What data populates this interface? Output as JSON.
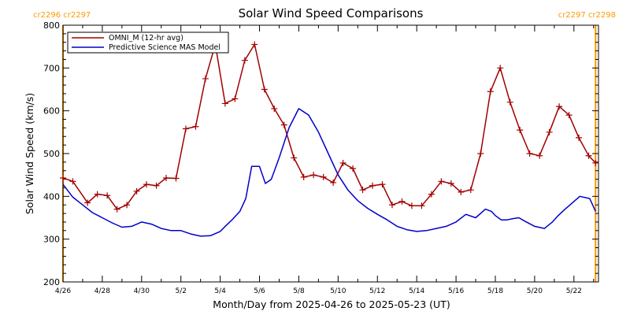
{
  "chart_data": {
    "type": "line",
    "title": "Solar Wind Speed Comparisons",
    "xlabel": "Month/Day from 2025-04-26 to 2025-05-23 (UT)",
    "ylabel": "Solar Wind Speed (km/s)",
    "ylim": [
      200,
      800
    ],
    "xlim": [
      0,
      27.25
    ],
    "y_ticks": [
      200,
      300,
      400,
      500,
      600,
      700,
      800
    ],
    "x_tick_days": [
      0,
      2,
      4,
      6,
      8,
      10,
      12,
      14,
      16,
      18,
      20,
      22,
      24,
      26
    ],
    "x_tick_labels": [
      "4/26",
      "4/28",
      "4/30",
      "5/2",
      "5/4",
      "5/6",
      "5/8",
      "5/10",
      "5/12",
      "5/14",
      "5/16",
      "5/18",
      "5/20",
      "5/22"
    ],
    "rotation_markers": [
      {
        "day": 0.0,
        "label": "cr2296 cr2297"
      },
      {
        "day": 27.1,
        "label": "cr2297 cr2298"
      }
    ],
    "colors": {
      "omni": "#a00000",
      "model": "#0000cc",
      "rotation": "#ff9900"
    },
    "legend": [
      "OMNI_M (12-hr avg)",
      "Predictive Science MAS Model"
    ],
    "legend_position": "top-left",
    "series": [
      {
        "name": "OMNI_M (12-hr avg)",
        "marker": "plus",
        "x": [
          0.0,
          0.5,
          1.25,
          1.75,
          2.25,
          2.75,
          3.25,
          3.75,
          4.25,
          4.75,
          5.25,
          5.75,
          6.25,
          6.75,
          7.25,
          7.75,
          8.25,
          8.75,
          9.25,
          9.75,
          10.25,
          10.75,
          11.25,
          11.75,
          12.25,
          12.75,
          13.25,
          13.75,
          14.25,
          14.75,
          15.25,
          15.75,
          16.25,
          16.75,
          17.25,
          17.75,
          18.25,
          18.75,
          19.25,
          19.75,
          20.25,
          20.75,
          21.25,
          21.75,
          22.25,
          22.75,
          23.25,
          23.75,
          24.25,
          24.75,
          25.25,
          25.75,
          26.25,
          26.75,
          27.1
        ],
        "values": [
          443,
          435,
          385,
          405,
          402,
          370,
          380,
          412,
          428,
          425,
          443,
          442,
          558,
          563,
          675,
          755,
          617,
          628,
          718,
          755,
          650,
          605,
          567,
          490,
          445,
          450,
          445,
          432,
          478,
          465,
          415,
          425,
          428,
          380,
          388,
          378,
          378,
          405,
          435,
          430,
          410,
          415,
          500,
          645,
          700,
          620,
          555,
          500,
          495,
          550,
          610,
          590,
          537,
          495,
          478
        ]
      },
      {
        "name": "Predictive Science MAS Model",
        "marker": "none",
        "x": [
          0.0,
          0.5,
          1.0,
          1.5,
          2.0,
          2.5,
          3.0,
          3.5,
          4.0,
          4.5,
          5.0,
          5.5,
          6.0,
          6.5,
          7.0,
          7.5,
          8.0,
          8.3,
          8.6,
          9.0,
          9.3,
          9.6,
          10.0,
          10.3,
          10.6,
          11.0,
          11.5,
          12.0,
          12.5,
          13.0,
          13.5,
          14.0,
          14.5,
          15.0,
          15.5,
          16.0,
          16.5,
          17.0,
          17.5,
          18.0,
          18.5,
          19.0,
          19.5,
          20.0,
          20.5,
          21.0,
          21.5,
          21.8,
          22.0,
          22.3,
          22.6,
          22.9,
          23.2,
          23.5,
          24.0,
          24.5,
          24.9,
          25.2,
          25.5,
          25.8,
          26.3,
          26.8,
          27.1
        ],
        "values": [
          428,
          398,
          380,
          362,
          350,
          338,
          328,
          330,
          340,
          335,
          325,
          320,
          320,
          312,
          307,
          308,
          318,
          332,
          345,
          365,
          395,
          470,
          470,
          430,
          440,
          490,
          560,
          605,
          590,
          550,
          500,
          450,
          415,
          390,
          372,
          358,
          345,
          330,
          322,
          318,
          320,
          325,
          330,
          340,
          358,
          350,
          370,
          365,
          355,
          345,
          345,
          348,
          350,
          342,
          330,
          325,
          340,
          355,
          368,
          380,
          400,
          395,
          365
        ]
      }
    ]
  }
}
